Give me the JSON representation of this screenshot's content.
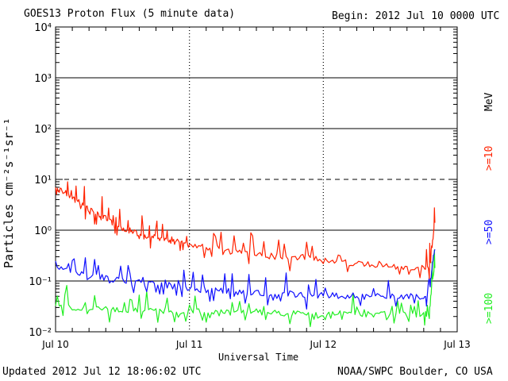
{
  "header": {
    "title": "GOES13 Proton Flux (5 minute data)",
    "begin": "Begin: 2012 Jul 10 0000 UTC"
  },
  "footer": {
    "updated": "Updated 2012 Jul 12 18:06:02 UTC",
    "source": "NOAA/SWPC Boulder, CO USA"
  },
  "chart_data": {
    "type": "line",
    "title": "GOES13 Proton Flux (5 minute data)",
    "xlabel": "Universal Time",
    "ylabel": "Particles cm⁻²s⁻¹sr⁻¹",
    "yscale": "log",
    "ylim": [
      0.01,
      10000
    ],
    "xlim": [
      0,
      72
    ],
    "x_ticks": [
      "Jul 10",
      "Jul 11",
      "Jul 12",
      "Jul 13"
    ],
    "y_ticks": [
      "10⁻²",
      "10⁻¹",
      "10⁰",
      "10¹",
      "10²",
      "10³",
      "10⁴"
    ],
    "x_unit": "hours since 2012 Jul 10 00:00 UTC",
    "legend_unit": "MeV",
    "thresholds": [
      {
        "level": 10,
        "style": "dashed"
      }
    ],
    "series": [
      {
        "name": ">=10",
        "color": "#ff2200",
        "x": [
          0,
          1,
          2,
          3,
          4,
          5,
          6,
          7,
          8,
          9,
          10,
          11,
          12,
          13,
          14,
          15,
          16,
          17,
          18,
          19,
          20,
          21,
          22,
          23,
          24,
          26,
          28,
          30,
          32,
          34,
          36,
          38,
          40,
          42,
          44,
          46,
          48,
          50,
          52,
          54,
          56,
          58,
          60,
          62,
          64,
          66,
          67,
          67.5,
          68
        ],
        "values": [
          6.5,
          6.2,
          5.2,
          4.3,
          3.6,
          3.0,
          2.5,
          2.2,
          2.0,
          1.7,
          1.4,
          1.25,
          1.1,
          1.0,
          0.95,
          0.85,
          0.8,
          0.75,
          0.7,
          0.68,
          0.62,
          0.6,
          0.58,
          0.55,
          0.52,
          0.48,
          0.45,
          0.42,
          0.38,
          0.35,
          0.33,
          0.31,
          0.3,
          0.28,
          0.3,
          0.28,
          0.25,
          0.24,
          0.23,
          0.22,
          0.21,
          0.2,
          0.19,
          0.19,
          0.18,
          0.18,
          0.2,
          0.5,
          1.4
        ]
      },
      {
        "name": ">=50",
        "color": "#1010ff",
        "x": [
          0,
          2,
          4,
          6,
          8,
          10,
          12,
          14,
          16,
          18,
          20,
          22,
          24,
          26,
          28,
          30,
          32,
          34,
          36,
          38,
          40,
          42,
          44,
          46,
          48,
          50,
          52,
          54,
          56,
          58,
          60,
          62,
          64,
          66,
          67,
          67.5,
          68
        ],
        "values": [
          0.2,
          0.17,
          0.15,
          0.13,
          0.12,
          0.11,
          0.1,
          0.095,
          0.09,
          0.085,
          0.08,
          0.075,
          0.07,
          0.068,
          0.065,
          0.064,
          0.062,
          0.06,
          0.058,
          0.057,
          0.056,
          0.055,
          0.054,
          0.053,
          0.052,
          0.052,
          0.051,
          0.051,
          0.05,
          0.05,
          0.05,
          0.05,
          0.05,
          0.05,
          0.05,
          0.2,
          0.42
        ]
      },
      {
        "name": ">=100",
        "color": "#22ee22",
        "x": [
          0,
          2,
          4,
          6,
          8,
          10,
          12,
          14,
          16,
          18,
          20,
          22,
          24,
          26,
          28,
          30,
          32,
          34,
          36,
          38,
          40,
          42,
          44,
          46,
          48,
          50,
          52,
          54,
          56,
          58,
          60,
          62,
          64,
          66,
          67,
          67.5,
          68
        ],
        "values": [
          0.032,
          0.03,
          0.029,
          0.028,
          0.028,
          0.027,
          0.027,
          0.026,
          0.026,
          0.026,
          0.026,
          0.025,
          0.025,
          0.025,
          0.025,
          0.024,
          0.024,
          0.024,
          0.024,
          0.024,
          0.024,
          0.023,
          0.023,
          0.023,
          0.023,
          0.023,
          0.023,
          0.022,
          0.022,
          0.022,
          0.022,
          0.022,
          0.022,
          0.022,
          0.022,
          0.1,
          0.18
        ]
      }
    ]
  }
}
